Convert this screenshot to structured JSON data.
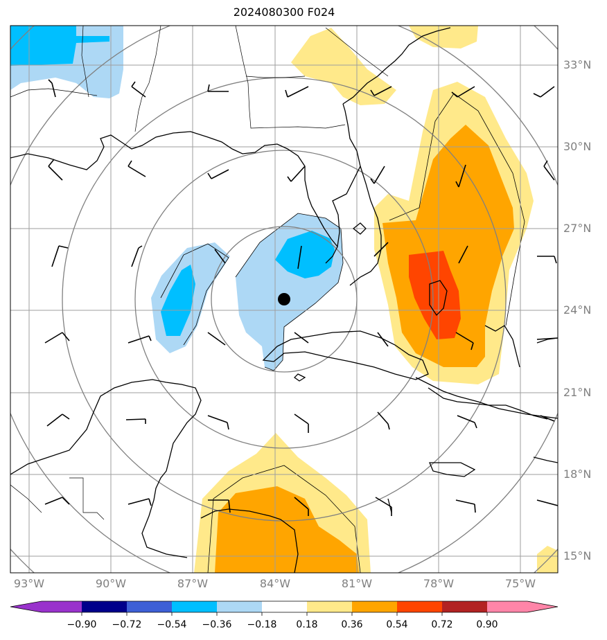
{
  "title": "2024080300 F024",
  "lon_labels": [
    "93°W",
    "90°W",
    "87°W",
    "84°W",
    "81°W",
    "78°W",
    "75°W"
  ],
  "lat_labels": [
    "33°N",
    "30°N",
    "27°N",
    "24°N",
    "21°N",
    "18°N",
    "15°N"
  ],
  "colorbar": {
    "ticks": [
      "−0.90",
      "−0.72",
      "−0.54",
      "−0.36",
      "−0.18",
      "0.18",
      "0.36",
      "0.54",
      "0.72",
      "0.90"
    ],
    "colors": [
      "#9932cc",
      "#00008b",
      "#3d5fd6",
      "#00bfff",
      "#add8f5",
      "#ffffff",
      "#ffe98a",
      "#ffa500",
      "#ff4500",
      "#b22222",
      "#ff85a8"
    ]
  },
  "center_marker": "storm-center",
  "map_extent": {
    "lon_min": "93.5°W",
    "lon_max": "73.5°W",
    "lat_min": "14.5°N",
    "lat_max": "34.5°N"
  }
}
